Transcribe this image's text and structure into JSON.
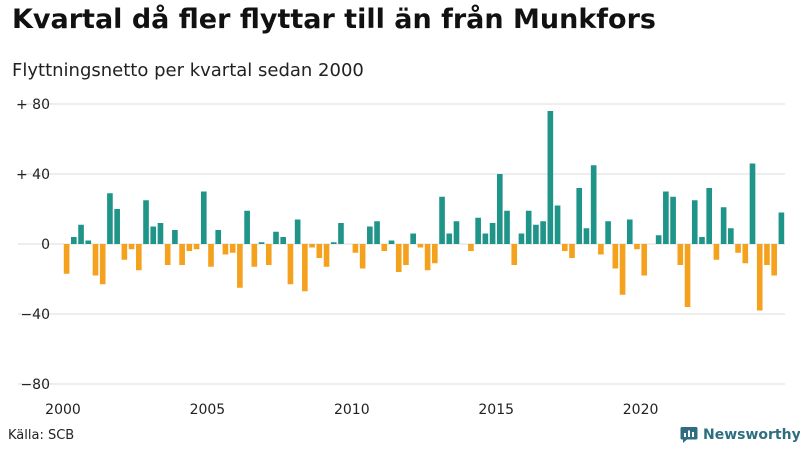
{
  "title": "Kvartal då fler flyttar till än från Munkfors",
  "subtitle": "Flyttningsnetto per kvartal sedan 2000",
  "source": "Källa: SCB",
  "brand": "Newsworthy",
  "colors": {
    "positive": "#1f9488",
    "negative": "#f4a11d",
    "grid": "#dddddd",
    "brand": "#2f6e80"
  },
  "chart_data": {
    "type": "bar",
    "title": "Kvartal då fler flyttar till än från Munkfors",
    "subtitle": "Flyttningsnetto per kvartal sedan 2000",
    "x_start": "2000 Q1",
    "ylim": [
      -80,
      80
    ],
    "yticks": [
      80,
      40,
      0,
      -40,
      -80
    ],
    "ytick_labels": [
      "+ 80",
      "+ 40",
      "0",
      "−40",
      "−80"
    ],
    "xticks": [
      "2000",
      "2005",
      "2010",
      "2015",
      "2020"
    ],
    "grid": true,
    "values": [
      -17,
      4,
      11,
      2,
      -18,
      -23,
      29,
      20,
      -9,
      -3,
      -15,
      25,
      10,
      12,
      -12,
      8,
      -12,
      -4,
      -3,
      30,
      -13,
      8,
      -6,
      -5,
      -25,
      19,
      -13,
      1,
      -12,
      7,
      4,
      -23,
      14,
      -27,
      -2,
      -8,
      -13,
      1,
      12,
      0,
      -5,
      -14,
      10,
      13,
      -4,
      2,
      -16,
      -12,
      6,
      -2,
      -15,
      -11,
      27,
      6,
      13,
      0,
      -4,
      15,
      6,
      12,
      40,
      19,
      -12,
      6,
      19,
      11,
      13,
      76,
      22,
      -4,
      -8,
      32,
      9,
      45,
      -6,
      13,
      -14,
      -29,
      14,
      -3,
      -18,
      0,
      5,
      30,
      27,
      -12,
      -36,
      25,
      4,
      32,
      -9,
      21,
      9,
      -5,
      -11,
      46,
      -38,
      -12,
      -18,
      18
    ]
  }
}
